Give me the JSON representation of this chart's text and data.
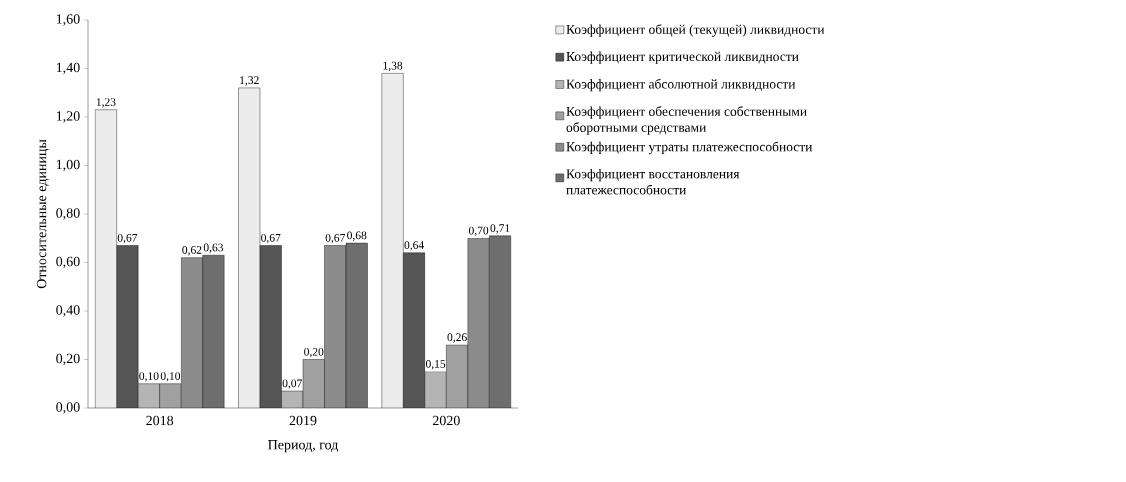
{
  "chart_data": {
    "type": "bar",
    "xlabel": "Период, год",
    "ylabel": "Относительные единицы",
    "categories": [
      "2018",
      "2019",
      "2020"
    ],
    "series": [
      {
        "name": "Коэффициент общей (текущей) ликвидности",
        "color": "#ececec",
        "values": [
          1.23,
          1.32,
          1.38
        ],
        "value_labels": [
          "1,23",
          "1,32",
          "1,38"
        ]
      },
      {
        "name": "Коэффициент критической ликвидности",
        "color": "#555555",
        "values": [
          0.67,
          0.67,
          0.64
        ],
        "value_labels": [
          "0,67",
          "0,67",
          "0,64"
        ]
      },
      {
        "name": "Коэффициент абсолютной ликвидности",
        "color": "#b4b4b4",
        "values": [
          0.1,
          0.07,
          0.15
        ],
        "value_labels": [
          "0,10",
          "0,07",
          "0,15"
        ]
      },
      {
        "name": "Коэффициент обеспечения собственными оборотными средствами",
        "color": "#a0a0a0",
        "values": [
          0.1,
          0.2,
          0.26
        ],
        "value_labels": [
          "0,10",
          "0,20",
          "0,26"
        ]
      },
      {
        "name": "Коэффициент утраты платежеспособности",
        "color": "#8c8c8c",
        "values": [
          0.62,
          0.67,
          0.7
        ],
        "value_labels": [
          "0,62",
          "0,67",
          "0,70"
        ]
      },
      {
        "name": "Коэффициент восстановления платежеспособности",
        "color": "#6e6e6e",
        "values": [
          0.63,
          0.68,
          0.71
        ],
        "value_labels": [
          "0,63",
          "0,68",
          "0,71"
        ]
      }
    ],
    "ylim": [
      0,
      1.6
    ],
    "yticks": [
      {
        "value": 0,
        "label": "0,00"
      },
      {
        "value": 0.2,
        "label": "0,20"
      },
      {
        "value": 0.4,
        "label": "0,40"
      },
      {
        "value": 0.6,
        "label": "0,60"
      },
      {
        "value": 0.8,
        "label": "0,80"
      },
      {
        "value": 1.0,
        "label": "1,00"
      },
      {
        "value": 1.2,
        "label": "1,20"
      },
      {
        "value": 1.4,
        "label": "1,40"
      },
      {
        "value": 1.6,
        "label": "1,60"
      }
    ],
    "legend": "right"
  }
}
